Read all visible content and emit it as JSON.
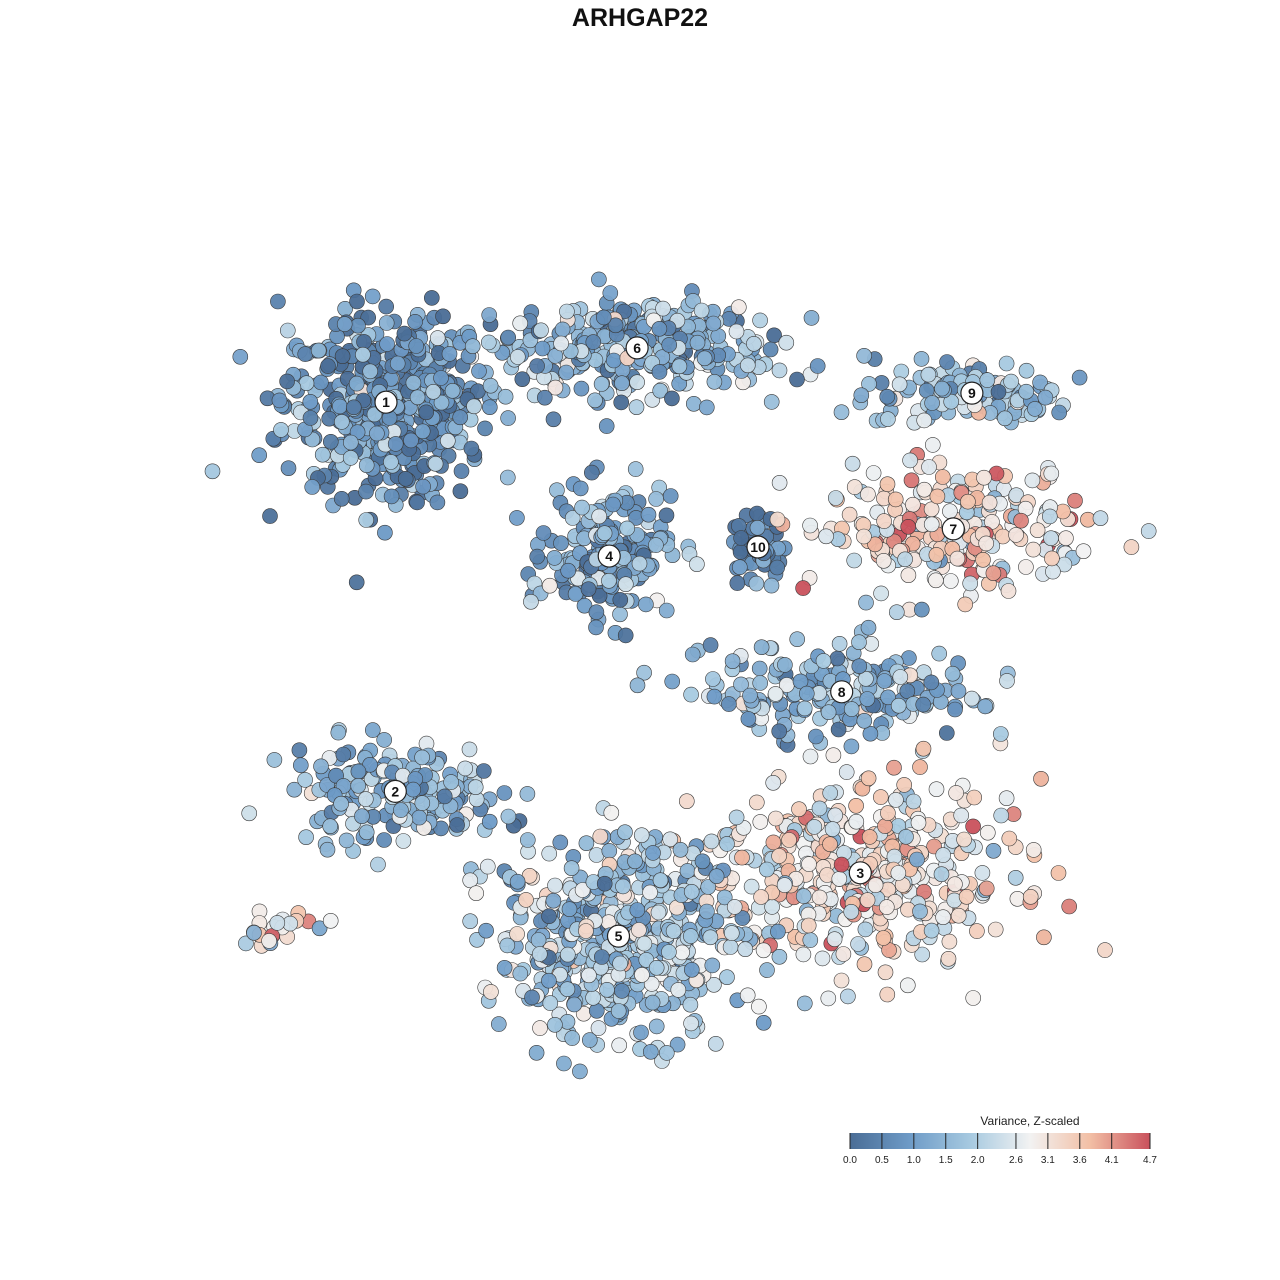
{
  "chart_data": {
    "type": "scatter",
    "title": "ARHGAP22",
    "xlabel": "",
    "ylabel": "",
    "grid": false,
    "axes_visible": false,
    "xlim": [
      0,
      100
    ],
    "ylim": [
      0,
      100
    ],
    "color_scale": {
      "title": "Variance, Z-scaled",
      "min": 0.0,
      "max": 4.7,
      "ticks": [
        0.0,
        0.5,
        1.0,
        1.5,
        2.0,
        2.6,
        3.1,
        3.6,
        4.1,
        4.7
      ],
      "tick_labels": [
        "0.0",
        "0.5",
        "1.0",
        "1.5",
        "2.0",
        "2.6",
        "3.1",
        "3.6",
        "4.1",
        "4.7"
      ],
      "colors": [
        "#4a6d96",
        "#6e9bc7",
        "#a6c9e0",
        "#f2f2f2",
        "#f2bfa5",
        "#c9515c"
      ],
      "placement": "bottom-right"
    },
    "clusters": [
      {
        "label": "1",
        "x": 20,
        "y": 76,
        "spread_x": 10,
        "spread_y": 9,
        "n": 520,
        "mean_value": 0.75
      },
      {
        "label": "6",
        "x": 47,
        "y": 82,
        "spread_x": 13,
        "spread_y": 5,
        "n": 320,
        "mean_value": 1.35
      },
      {
        "label": "4",
        "x": 44,
        "y": 59,
        "spread_x": 6,
        "spread_y": 6,
        "n": 200,
        "mean_value": 1.0
      },
      {
        "label": "10",
        "x": 60,
        "y": 60,
        "spread_x": 2.5,
        "spread_y": 3,
        "n": 55,
        "mean_value": 0.3
      },
      {
        "label": "9",
        "x": 83,
        "y": 77,
        "spread_x": 10,
        "spread_y": 3.5,
        "n": 130,
        "mean_value": 1.7
      },
      {
        "label": "7",
        "x": 81,
        "y": 62,
        "spread_x": 14,
        "spread_y": 6,
        "n": 230,
        "mean_value": 3.05
      },
      {
        "label": "8",
        "x": 69,
        "y": 44,
        "spread_x": 13,
        "spread_y": 5,
        "n": 210,
        "mean_value": 1.5
      },
      {
        "label": "2",
        "x": 21,
        "y": 33,
        "spread_x": 10,
        "spread_y": 5,
        "n": 190,
        "mean_value": 1.35
      },
      {
        "label": "3",
        "x": 71,
        "y": 24,
        "spread_x": 15,
        "spread_y": 9,
        "n": 430,
        "mean_value": 3.0
      },
      {
        "label": "5",
        "x": 45,
        "y": 17,
        "spread_x": 12,
        "spread_y": 10,
        "n": 520,
        "mean_value": 1.8
      }
    ],
    "stray_groups": [
      {
        "x": 8,
        "y": 18,
        "spread_x": 6,
        "spread_y": 2,
        "n": 22,
        "mean_value": 3.0
      }
    ]
  }
}
